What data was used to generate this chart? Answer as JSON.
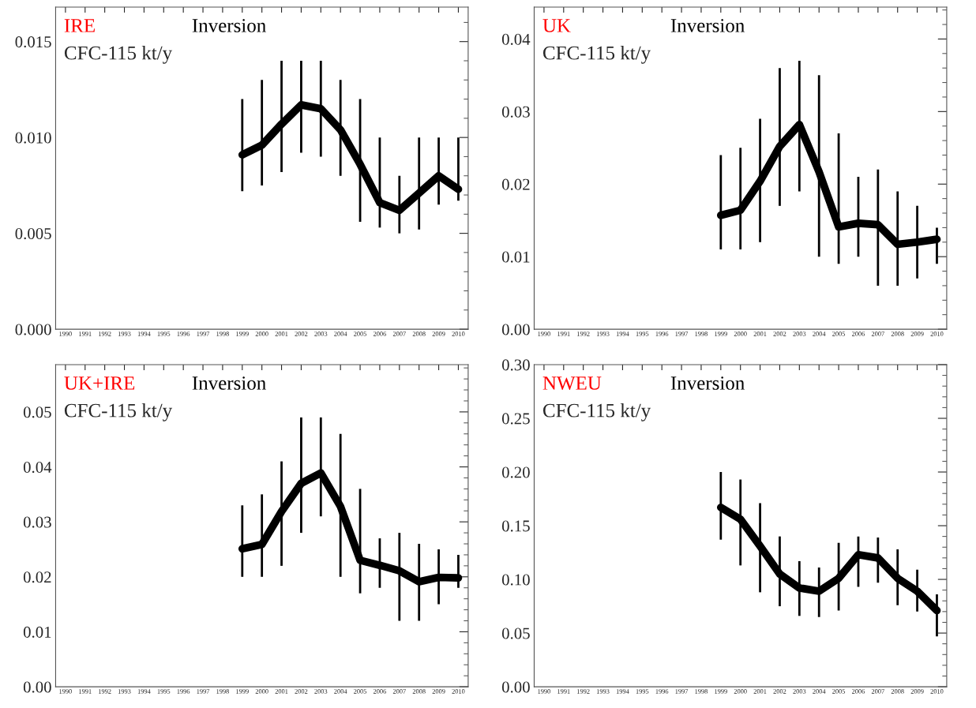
{
  "chart_data": [
    {
      "type": "line",
      "title": "IRE",
      "subtitle": "Inversion",
      "annotations": [
        "CFC-115 kt/y"
      ],
      "categories": [
        "1990",
        "1991",
        "1992",
        "1993",
        "1994",
        "1995",
        "1996",
        "1997",
        "1998",
        "1999",
        "2000",
        "2001",
        "2002",
        "2003",
        "2004",
        "2005",
        "2006",
        "2007",
        "2008",
        "2009",
        "2010"
      ],
      "series": [
        {
          "color": "#000000",
          "values": [
            null,
            null,
            null,
            null,
            null,
            null,
            null,
            null,
            null,
            0.0091,
            0.0096,
            0.0107,
            0.0117,
            0.0115,
            0.0104,
            0.0086,
            0.0066,
            0.0062,
            0.0071,
            0.008,
            0.0073
          ],
          "errors": [
            null,
            null,
            null,
            null,
            null,
            null,
            null,
            null,
            null,
            [
              0.0072,
              0.012
            ],
            [
              0.0075,
              0.013
            ],
            [
              0.0082,
              0.014
            ],
            [
              0.0092,
              0.014
            ],
            [
              0.009,
              0.014
            ],
            [
              0.008,
              0.013
            ],
            [
              0.0056,
              0.012
            ],
            [
              0.0053,
              0.01
            ],
            [
              0.005,
              0.008
            ],
            [
              0.0052,
              0.01
            ],
            [
              0.0065,
              0.01
            ],
            [
              0.0067,
              0.01
            ]
          ]
        }
      ],
      "ylim": [
        0,
        0.0168
      ],
      "yticks": [
        {
          "value": 0,
          "label": "0.000"
        },
        {
          "value": 0.005,
          "label": "0.005"
        },
        {
          "value": 0.01,
          "label": "0.010"
        },
        {
          "value": 0.015,
          "label": "0.015"
        }
      ],
      "grid": false,
      "legend": false,
      "marker": "none",
      "line_style": "solid"
    },
    {
      "type": "line",
      "title": "UK",
      "subtitle": "Inversion",
      "annotations": [
        "CFC-115 kt/y"
      ],
      "categories": [
        "1990",
        "1991",
        "1992",
        "1993",
        "1994",
        "1995",
        "1996",
        "1997",
        "1998",
        "1999",
        "2000",
        "2001",
        "2002",
        "2003",
        "2004",
        "2005",
        "2006",
        "2007",
        "2008",
        "2009",
        "2010"
      ],
      "series": [
        {
          "color": "#000000",
          "values": [
            null,
            null,
            null,
            null,
            null,
            null,
            null,
            null,
            null,
            0.0157,
            0.0164,
            0.0204,
            0.0252,
            0.0282,
            0.0217,
            0.0141,
            0.0146,
            0.0144,
            0.0117,
            0.012,
            0.0124
          ],
          "errors": [
            null,
            null,
            null,
            null,
            null,
            null,
            null,
            null,
            null,
            [
              0.011,
              0.024
            ],
            [
              0.011,
              0.025
            ],
            [
              0.012,
              0.029
            ],
            [
              0.017,
              0.036
            ],
            [
              0.019,
              0.037
            ],
            [
              0.01,
              0.035
            ],
            [
              0.009,
              0.027
            ],
            [
              0.01,
              0.021
            ],
            [
              0.006,
              0.022
            ],
            [
              0.006,
              0.019
            ],
            [
              0.007,
              0.017
            ],
            [
              0.009,
              0.014
            ]
          ]
        }
      ],
      "ylim": [
        0,
        0.0444
      ],
      "yticks": [
        {
          "value": 0,
          "label": "0.00"
        },
        {
          "value": 0.01,
          "label": "0.01"
        },
        {
          "value": 0.02,
          "label": "0.02"
        },
        {
          "value": 0.03,
          "label": "0.03"
        },
        {
          "value": 0.04,
          "label": "0.04"
        }
      ],
      "grid": false,
      "legend": false,
      "marker": "none",
      "line_style": "solid"
    },
    {
      "type": "line",
      "title": "UK+IRE",
      "subtitle": "Inversion",
      "annotations": [
        "CFC-115 kt/y"
      ],
      "categories": [
        "1990",
        "1991",
        "1992",
        "1993",
        "1994",
        "1995",
        "1996",
        "1997",
        "1998",
        "1999",
        "2000",
        "2001",
        "2002",
        "2003",
        "2004",
        "2005",
        "2006",
        "2007",
        "2008",
        "2009",
        "2010"
      ],
      "series": [
        {
          "color": "#000000",
          "values": [
            null,
            null,
            null,
            null,
            null,
            null,
            null,
            null,
            null,
            0.0251,
            0.0259,
            0.0319,
            0.037,
            0.0389,
            0.0328,
            0.023,
            0.0221,
            0.0211,
            0.0191,
            0.0199,
            0.0198
          ],
          "errors": [
            null,
            null,
            null,
            null,
            null,
            null,
            null,
            null,
            null,
            [
              0.02,
              0.033
            ],
            [
              0.02,
              0.035
            ],
            [
              0.022,
              0.041
            ],
            [
              0.028,
              0.049
            ],
            [
              0.031,
              0.049
            ],
            [
              0.02,
              0.046
            ],
            [
              0.017,
              0.036
            ],
            [
              0.018,
              0.027
            ],
            [
              0.012,
              0.028
            ],
            [
              0.012,
              0.026
            ],
            [
              0.015,
              0.025
            ],
            [
              0.018,
              0.024
            ]
          ]
        }
      ],
      "ylim": [
        0,
        0.0586
      ],
      "yticks": [
        {
          "value": 0,
          "label": "0.00"
        },
        {
          "value": 0.01,
          "label": "0.01"
        },
        {
          "value": 0.02,
          "label": "0.02"
        },
        {
          "value": 0.03,
          "label": "0.03"
        },
        {
          "value": 0.04,
          "label": "0.04"
        },
        {
          "value": 0.05,
          "label": "0.05"
        }
      ],
      "grid": false,
      "legend": false,
      "marker": "none",
      "line_style": "solid"
    },
    {
      "type": "line",
      "title": "NWEU",
      "subtitle": "Inversion",
      "annotations": [
        "CFC-115 kt/y"
      ],
      "categories": [
        "1990",
        "1991",
        "1992",
        "1993",
        "1994",
        "1995",
        "1996",
        "1997",
        "1998",
        "1999",
        "2000",
        "2001",
        "2002",
        "2003",
        "2004",
        "2005",
        "2006",
        "2007",
        "2008",
        "2009",
        "2010"
      ],
      "series": [
        {
          "color": "#000000",
          "values": [
            null,
            null,
            null,
            null,
            null,
            null,
            null,
            null,
            null,
            0.167,
            0.156,
            0.131,
            0.105,
            0.092,
            0.089,
            0.101,
            0.123,
            0.12,
            0.101,
            0.089,
            0.071
          ],
          "errors": [
            null,
            null,
            null,
            null,
            null,
            null,
            null,
            null,
            null,
            [
              0.137,
              0.2
            ],
            [
              0.113,
              0.193
            ],
            [
              0.088,
              0.171
            ],
            [
              0.075,
              0.14
            ],
            [
              0.066,
              0.117
            ],
            [
              0.065,
              0.111
            ],
            [
              0.071,
              0.134
            ],
            [
              0.093,
              0.14
            ],
            [
              0.097,
              0.139
            ],
            [
              0.076,
              0.128
            ],
            [
              0.07,
              0.109
            ],
            [
              0.047,
              0.086
            ]
          ]
        }
      ],
      "ylim": [
        0,
        0.3
      ],
      "yticks": [
        {
          "value": 0,
          "label": "0.00"
        },
        {
          "value": 0.05,
          "label": "0.05"
        },
        {
          "value": 0.1,
          "label": "0.10"
        },
        {
          "value": 0.15,
          "label": "0.15"
        },
        {
          "value": 0.2,
          "label": "0.20"
        },
        {
          "value": 0.25,
          "label": "0.25"
        },
        {
          "value": 0.3,
          "label": "0.30"
        }
      ],
      "grid": false,
      "legend": false,
      "marker": "none",
      "line_style": "solid"
    }
  ]
}
